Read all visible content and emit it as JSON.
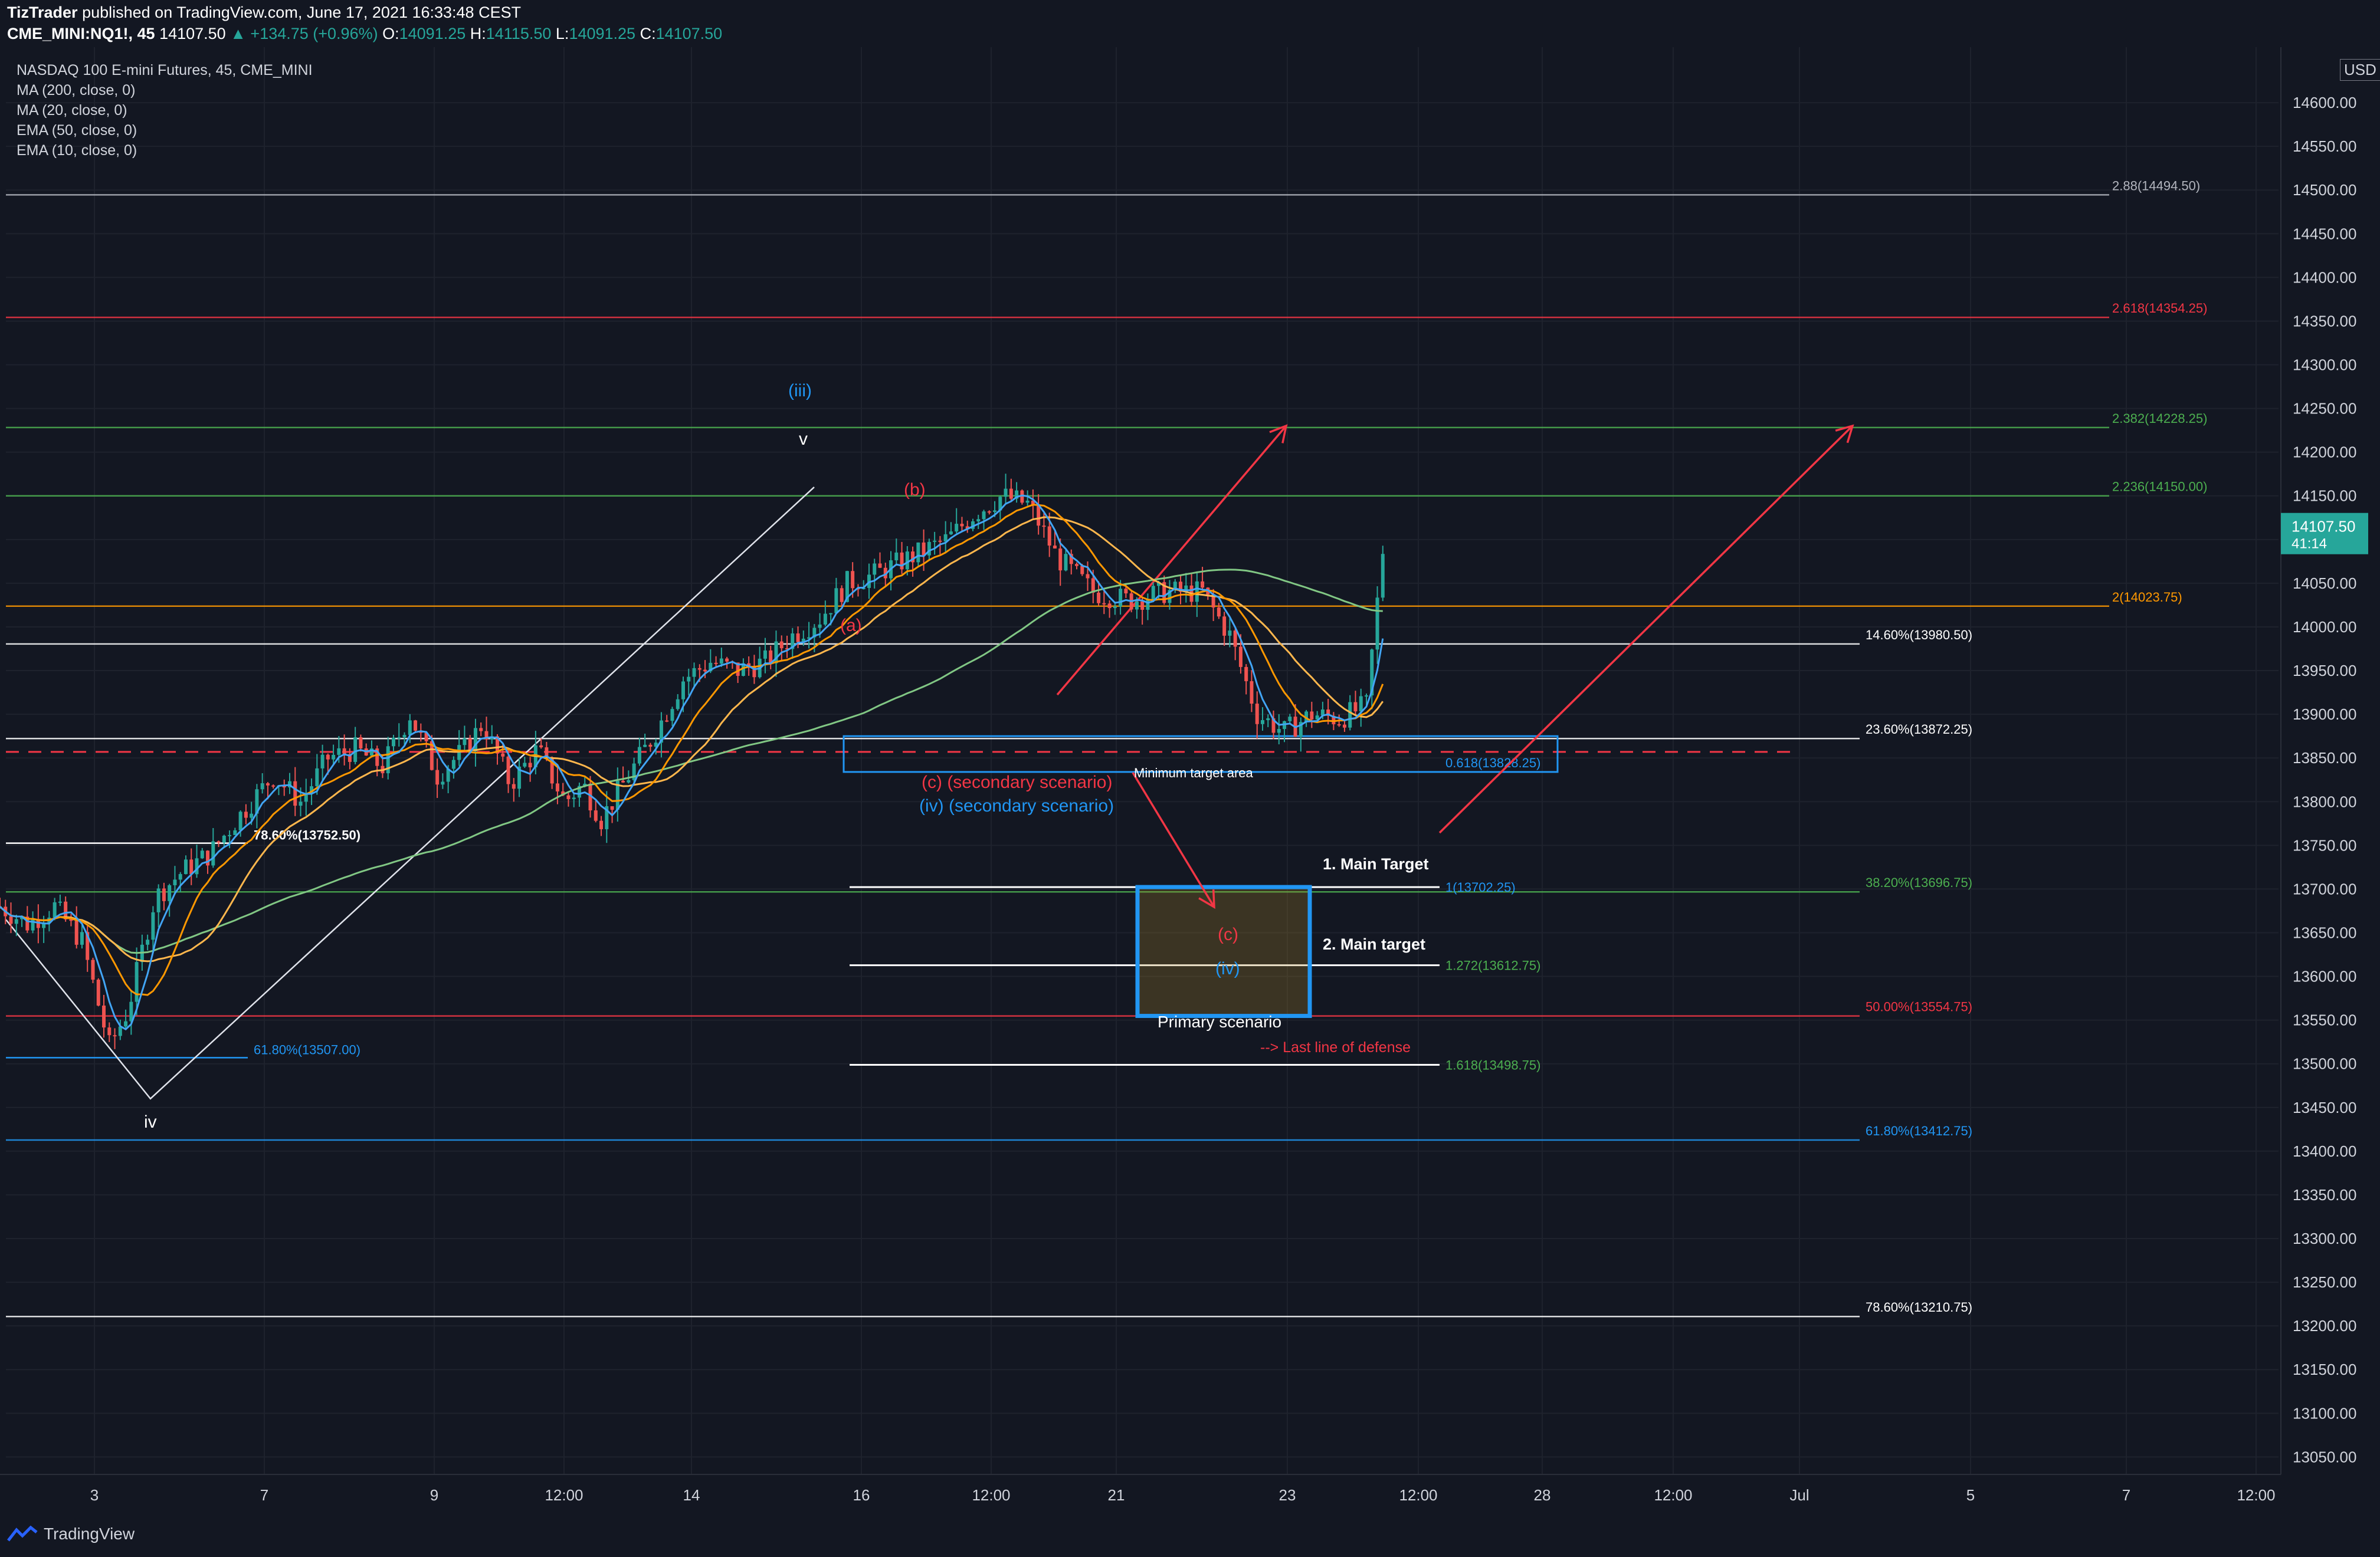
{
  "header": {
    "author": "TizTrader",
    "published_text": "published on TradingView.com, June 17, 2021 16:33:48 CEST",
    "symbol": "CME_MINI:NQ1!, 45",
    "last": "14107.50",
    "change": "▲ +134.75 (+0.96%)",
    "o_label": "O:",
    "o": "14091.25",
    "h_label": "H:",
    "h": "14115.50",
    "l_label": "L:",
    "l": "14091.25",
    "c_label": "C:",
    "c": "14107.50"
  },
  "legend": {
    "title": "NASDAQ 100 E-mini Futures, 45, CME_MINI",
    "items": [
      "MA (200, close, 0)",
      "MA (20, close, 0)",
      "EMA (50, close, 0)",
      "EMA (10, close, 0)"
    ]
  },
  "currency": "USD",
  "brand": "TradingView",
  "price_badge": {
    "price": "14107.50",
    "countdown": "41:14",
    "color": "#26a69a"
  },
  "colors": {
    "background": "#131722",
    "up": "#26a69a",
    "down": "#ef5350",
    "red_annot": "#f23645",
    "blue_annot": "#2196f3",
    "orange": "#ff9800",
    "green_line": "#4caf50"
  },
  "chart_data": {
    "type": "candlestick",
    "ylim": [
      13030,
      14650
    ],
    "y_ticks": [
      "14600.00",
      "14550.00",
      "14500.00",
      "14450.00",
      "14400.00",
      "14350.00",
      "14300.00",
      "14250.00",
      "14200.00",
      "14150.00",
      "14100.00",
      "14050.00",
      "14000.00",
      "13950.00",
      "13900.00",
      "13850.00",
      "13800.00",
      "13750.00",
      "13700.00",
      "13650.00",
      "13600.00",
      "13550.00",
      "13500.00",
      "13450.00",
      "13400.00",
      "13350.00",
      "13300.00",
      "13250.00",
      "13200.00",
      "13150.00",
      "13100.00",
      "13050.00"
    ],
    "x_ticks": [
      "3",
      "7",
      "9",
      "12:00",
      "14",
      "16",
      "12:00",
      "21",
      "23",
      "12:00",
      "28",
      "12:00",
      "Jul",
      "5",
      "7",
      "12:00"
    ],
    "price_path": [
      [
        0,
        13680
      ],
      [
        0.03,
        13660
      ],
      [
        0.06,
        13680
      ],
      [
        0.09,
        13640
      ],
      [
        0.12,
        13520
      ],
      [
        0.14,
        13560
      ],
      [
        0.17,
        13690
      ],
      [
        0.2,
        13720
      ],
      [
        0.23,
        13740
      ],
      [
        0.26,
        13780
      ],
      [
        0.3,
        13830
      ],
      [
        0.33,
        13800
      ],
      [
        0.36,
        13850
      ],
      [
        0.39,
        13860
      ],
      [
        0.42,
        13840
      ],
      [
        0.45,
        13900
      ],
      [
        0.48,
        13830
      ],
      [
        0.51,
        13860
      ],
      [
        0.53,
        13890
      ],
      [
        0.56,
        13820
      ],
      [
        0.59,
        13860
      ],
      [
        0.62,
        13800
      ],
      [
        0.64,
        13820
      ],
      [
        0.66,
        13780
      ],
      [
        0.69,
        13830
      ],
      [
        0.72,
        13880
      ],
      [
        0.75,
        13940
      ],
      [
        0.78,
        13960
      ],
      [
        0.81,
        13950
      ],
      [
        0.84,
        13960
      ],
      [
        0.87,
        13990
      ],
      [
        0.9,
        14010
      ],
      [
        0.93,
        14050
      ],
      [
        0.96,
        14060
      ],
      [
        1.0,
        14080
      ],
      [
        1.04,
        14100
      ],
      [
        1.07,
        14130
      ],
      [
        1.1,
        14150
      ],
      [
        1.13,
        14140
      ],
      [
        1.16,
        14080
      ],
      [
        1.2,
        14040
      ],
      [
        1.24,
        14030
      ],
      [
        1.28,
        14040
      ],
      [
        1.32,
        14040
      ],
      [
        1.35,
        13990
      ],
      [
        1.38,
        13900
      ],
      [
        1.41,
        13880
      ],
      [
        1.44,
        13900
      ],
      [
        1.47,
        13895
      ],
      [
        1.5,
        13910
      ],
      [
        1.52,
        14107.5
      ]
    ],
    "fib_levels": [
      {
        "label": "2.88(14494.50)",
        "price": 14494.5,
        "color": "#b2b5be"
      },
      {
        "label": "2.618(14354.25)",
        "price": 14354.25,
        "color": "#f23645"
      },
      {
        "label": "2.382(14228.25)",
        "price": 14228.25,
        "color": "#4caf50"
      },
      {
        "label": "2.236(14150.00)",
        "price": 14150.0,
        "color": "#4caf50"
      },
      {
        "label": "2(14023.75)",
        "price": 14023.75,
        "color": "#ff9800"
      },
      {
        "label": "14.60%(13980.50)",
        "price": 13980.5,
        "color": "#ffffff"
      },
      {
        "label": "23.60%(13872.25)",
        "price": 13872.25,
        "color": "#ffffff"
      },
      {
        "label": "38.20%(13696.75)",
        "price": 13696.75,
        "color": "#4caf50"
      },
      {
        "label": "50.00%(13554.75)",
        "price": 13554.75,
        "color": "#f23645"
      },
      {
        "label": "61.80%(13412.75)",
        "price": 13412.75,
        "color": "#2196f3"
      },
      {
        "label": "78.60%(13210.75)",
        "price": 13210.75,
        "color": "#ffffff"
      }
    ],
    "left_fibs": [
      {
        "label": "78.60%(13752.50)",
        "price": 13752.5,
        "color": "#ffffff"
      },
      {
        "label": "61.80%(13507.00)",
        "price": 13507.0,
        "color": "#2196f3"
      }
    ],
    "ext_levels": [
      {
        "label": "1(13702.25)",
        "price": 13702.25,
        "color": "#2196f3"
      },
      {
        "label": "1.272(13612.75)",
        "price": 13612.75,
        "color": "#4caf50"
      },
      {
        "label": "1.618(13498.75)",
        "price": 13498.75,
        "color": "#4caf50"
      }
    ],
    "blue_box_label": "0.618(13828.25)",
    "annotations": {
      "wave_iii": "(iii)",
      "wave_v": "v",
      "wave_b": "(b)",
      "wave_a": "(a)",
      "wave_iv_low": "iv",
      "secondary_c": "(c) (secondary scenario)",
      "secondary_iv": "(iv) (secondary scenario)",
      "min_target": "Minimum target area",
      "main_target_1": "1. Main Target",
      "main_target_2": "2. Main target",
      "box_c": "(c)",
      "box_iv": "(iv)",
      "primary": "Primary scenario",
      "last_line": "--> Last line of defense"
    }
  }
}
